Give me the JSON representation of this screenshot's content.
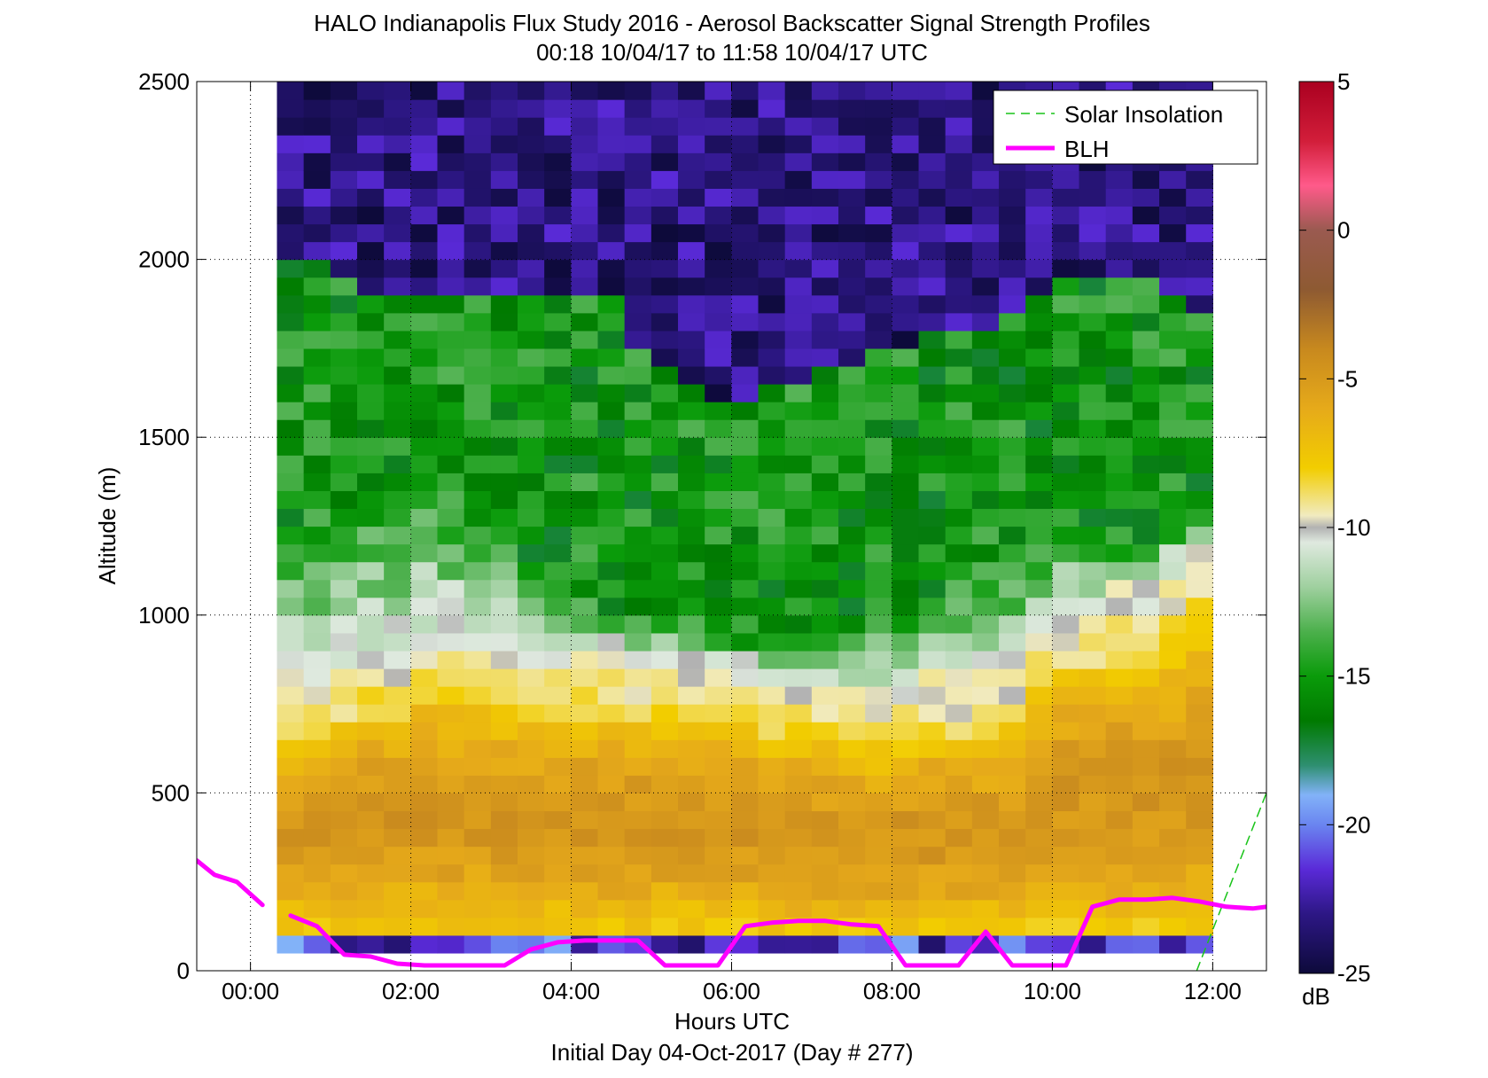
{
  "chart_data": {
    "type": "heatmap",
    "title": "HALO Indianapolis Flux Study 2016 - Aerosol Backscatter Signal Strength Profiles",
    "subtitle": "00:18 10/04/17 to 11:58 10/04/17  UTC",
    "xlabel": "Hours UTC",
    "xlabel2": "Initial Day 04-Oct-2017 (Day # 277)",
    "ylabel": "Altitude (m)",
    "xlim": [
      -0.67,
      12.67
    ],
    "ylim": [
      0,
      2500
    ],
    "x_ticks": [
      {
        "value": 0,
        "label": "00:00"
      },
      {
        "value": 2,
        "label": "02:00"
      },
      {
        "value": 4,
        "label": "04:00"
      },
      {
        "value": 6,
        "label": "06:00"
      },
      {
        "value": 8,
        "label": "08:00"
      },
      {
        "value": 10,
        "label": "10:00"
      },
      {
        "value": 12,
        "label": "12:00"
      }
    ],
    "y_ticks": [
      {
        "value": 0,
        "label": "0"
      },
      {
        "value": 500,
        "label": "500"
      },
      {
        "value": 1000,
        "label": "1000"
      },
      {
        "value": 1500,
        "label": "1500"
      },
      {
        "value": 2000,
        "label": "2000"
      },
      {
        "value": 2500,
        "label": "2500"
      }
    ],
    "grid": true,
    "colorbar": {
      "label": "dB",
      "range": [
        -25,
        5
      ],
      "ticks": [
        {
          "value": 5,
          "label": "5"
        },
        {
          "value": 0,
          "label": "0"
        },
        {
          "value": -5,
          "label": "-5"
        },
        {
          "value": -10,
          "label": "-10"
        },
        {
          "value": -15,
          "label": "-15"
        },
        {
          "value": -20,
          "label": "-20"
        },
        {
          "value": -25,
          "label": "-25"
        }
      ]
    },
    "heatmap": {
      "x_start": 0.33,
      "x_end": 12.0,
      "columns": 35,
      "y_start": 50,
      "y_end": 2500,
      "rows": 49,
      "z_unit": "dB",
      "profile_by_column": {
        "surface_band_top": [
          100,
          100,
          100,
          100,
          100,
          100,
          100,
          100,
          100,
          100,
          100,
          100,
          100,
          100,
          100,
          100,
          100,
          100,
          100,
          100,
          100,
          100,
          100,
          100,
          100,
          100,
          100,
          100,
          100,
          100,
          100,
          100,
          100,
          100,
          100
        ],
        "aerosol_layer_top": [
          820,
          820,
          860,
          900,
          880,
          960,
          940,
          940,
          920,
          900,
          900,
          900,
          900,
          880,
          880,
          880,
          860,
          860,
          820,
          820,
          800,
          800,
          780,
          800,
          820,
          800,
          820,
          840,
          960,
          1040,
          1040,
          1060,
          1060,
          1120,
          1200
        ],
        "transition_top": [
          1250,
          1250,
          1250,
          1300,
          1300,
          1350,
          1300,
          1250,
          1200,
          1150,
          1100,
          1050,
          1000,
          1000,
          980,
          960,
          940,
          920,
          920,
          920,
          940,
          950,
          980,
          1000,
          1050,
          1100,
          1150,
          1150,
          1150,
          1200,
          1200,
          1200,
          1200,
          1250,
          1300
        ],
        "green_layer_top": [
          2000,
          2000,
          1950,
          1900,
          1900,
          1900,
          1900,
          1900,
          1900,
          1900,
          1900,
          1900,
          1900,
          1750,
          1700,
          1650,
          1600,
          1600,
          1650,
          1650,
          1700,
          1700,
          1750,
          1750,
          1800,
          1800,
          1800,
          1850,
          1900,
          1950,
          1950,
          1950,
          1950,
          1900,
          1850
        ]
      }
    },
    "series": [
      {
        "name": "Solar Insolation",
        "style": "dashed",
        "color": "#19c419",
        "x": [
          11.8,
          12.67
        ],
        "y": [
          0,
          500
        ]
      },
      {
        "name": "BLH",
        "style": "solid",
        "color": "#ff00ff",
        "segments": [
          {
            "x": [
              -0.67,
              -0.45,
              -0.17,
              0.15
            ],
            "y": [
              310,
              270,
              250,
              185
            ]
          },
          {
            "x": [
              0.5,
              0.83,
              1.17,
              1.5,
              1.83,
              2.17,
              2.5,
              2.83,
              3.17,
              3.5,
              3.83,
              4.17,
              4.5,
              4.83,
              5.17,
              5.5,
              5.83,
              6.17,
              6.5,
              6.83,
              7.17,
              7.5,
              7.83,
              8.17,
              8.5,
              8.83,
              9.17,
              9.5,
              9.83,
              10.17,
              10.5,
              10.83,
              11.17,
              11.5,
              11.83,
              12.17,
              12.5,
              12.67
            ],
            "y": [
              155,
              125,
              45,
              40,
              20,
              15,
              15,
              15,
              15,
              60,
              80,
              85,
              85,
              85,
              15,
              15,
              15,
              125,
              135,
              140,
              140,
              130,
              125,
              15,
              15,
              15,
              110,
              15,
              15,
              15,
              180,
              200,
              200,
              205,
              195,
              180,
              175,
              180
            ]
          }
        ]
      }
    ],
    "legend": {
      "placement": "top-right",
      "entries": [
        "Solar Insolation",
        "BLH"
      ]
    }
  },
  "colors": {
    "blh": "#ff00ff",
    "solar": "#19c419",
    "colormap_stops": [
      {
        "v": -25,
        "c": "#0d0a3a"
      },
      {
        "v": -23,
        "c": "#2d1785"
      },
      {
        "v": -21.5,
        "c": "#5a2ad8"
      },
      {
        "v": -20,
        "c": "#6a85f0"
      },
      {
        "v": -19,
        "c": "#82b2f8"
      },
      {
        "v": -18,
        "c": "#2e8f70"
      },
      {
        "v": -16.5,
        "c": "#007a00"
      },
      {
        "v": -15,
        "c": "#0a9b0a"
      },
      {
        "v": -13.5,
        "c": "#4cb04c"
      },
      {
        "v": -12,
        "c": "#9fd09f"
      },
      {
        "v": -10.5,
        "c": "#dfe9df"
      },
      {
        "v": -10,
        "c": "#b2b2b2"
      },
      {
        "v": -9.6,
        "c": "#f1ebc0"
      },
      {
        "v": -8,
        "c": "#f2cd00"
      },
      {
        "v": -6,
        "c": "#e6aa1a"
      },
      {
        "v": -4,
        "c": "#c8891e"
      },
      {
        "v": -2,
        "c": "#8e5a32"
      },
      {
        "v": 0,
        "c": "#9a5a50"
      },
      {
        "v": 1.5,
        "c": "#ff5a8a"
      },
      {
        "v": 3,
        "c": "#d21e3a"
      },
      {
        "v": 5,
        "c": "#aa0020"
      }
    ]
  }
}
